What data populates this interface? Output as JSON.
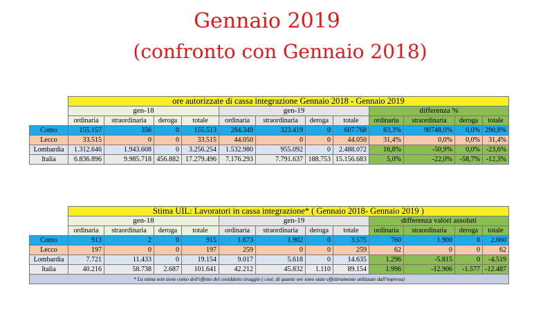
{
  "title": "Gennaio 2019",
  "subtitle": "(confronto con Gennaio 2018)",
  "table1": {
    "title": "ore autorizzate di cassa integrazione Gennaio 2018 - Gennaio 2019",
    "groups": [
      "gen-18",
      "gen-19",
      "differenza %"
    ],
    "columns": [
      "ordinaria",
      "straordinaria",
      "deroga",
      "totale",
      "ordinaria",
      "straordinaria",
      "deroga",
      "totale",
      "ordinaria",
      "straordinaria",
      "deroga",
      "totale"
    ],
    "rows": [
      {
        "label": "Como",
        "cells": [
          "155.157",
          "356",
          "0",
          "155.513",
          "284.349",
          "323.419",
          "0",
          "607.768",
          "83,3%",
          "90748,0%",
          "0,0%",
          "290,8%"
        ]
      },
      {
        "label": "Lecco",
        "cells": [
          "33.515",
          "0",
          "0",
          "33.515",
          "44.050",
          "0",
          "0",
          "44.050",
          "31,4%",
          "0,0%",
          "0,0%",
          "31,4%"
        ]
      },
      {
        "label": "Lombardia",
        "cells": [
          "1.312.646",
          "1.943.608",
          "0",
          "3.256.254",
          "1.532.980",
          "955.092",
          "0",
          "2.488.072",
          "16,8%",
          "-50,9%",
          "0,0%",
          "-23,6%"
        ]
      },
      {
        "label": "Italia",
        "cells": [
          "6.836.896",
          "9.985.718",
          "456.882",
          "17.279.496",
          "7.176.293",
          "7.791.637",
          "188.753",
          "15.156.683",
          "5,0%",
          "-22,0%",
          "-58,7%",
          "-12,3%"
        ]
      }
    ]
  },
  "table2": {
    "title": "Stima UIL: Lavoratori in cassa integrazione* ( Gennaio 2018- Gennaio 2019 )",
    "groups": [
      "gen-18",
      "gen-19",
      "differenza valori assoluti"
    ],
    "columns": [
      "ordinaria",
      "straordinaria",
      "deroga",
      "totale",
      "ordinaria",
      "straordinaria",
      "deroga",
      "totale",
      "ordinaria",
      "straordinaria",
      "deroga",
      "totale"
    ],
    "rows": [
      {
        "label": "Como",
        "cells": [
          "913",
          "2",
          "0",
          "915",
          "1.673",
          "1.902",
          "0",
          "3.575",
          "760",
          "1.900",
          "0",
          "2.660"
        ]
      },
      {
        "label": "Lecco",
        "cells": [
          "197",
          "0",
          "0",
          "197",
          "259",
          "0",
          "0",
          "259",
          "62",
          "0",
          "0",
          "62"
        ]
      },
      {
        "label": "Lombardia",
        "cells": [
          "7.721",
          "11.433",
          "0",
          "19.154",
          "9.017",
          "5.618",
          "0",
          "14.635",
          "1.296",
          "-5.815",
          "0",
          "-4.519"
        ]
      },
      {
        "label": "Italia",
        "cells": [
          "40.216",
          "58.738",
          "2.687",
          "101.641",
          "42.212",
          "45.832",
          "1.110",
          "89.154",
          "1.996",
          "-12.906",
          "-1.577",
          "-12.487"
        ]
      }
    ],
    "note": "* La stima non tiene conto dell'effetto del cosiddetto tiraggio ( cioè, di quante ore sono state effettivamente utilizzate dall'impresa)"
  },
  "colors": {
    "title": "#e0191c",
    "header_yellow": "#f7ef23",
    "como_blue": "#1fa9e6",
    "lecco_salmon": "#f7c9ab",
    "diff_green": "#8bbd52"
  }
}
